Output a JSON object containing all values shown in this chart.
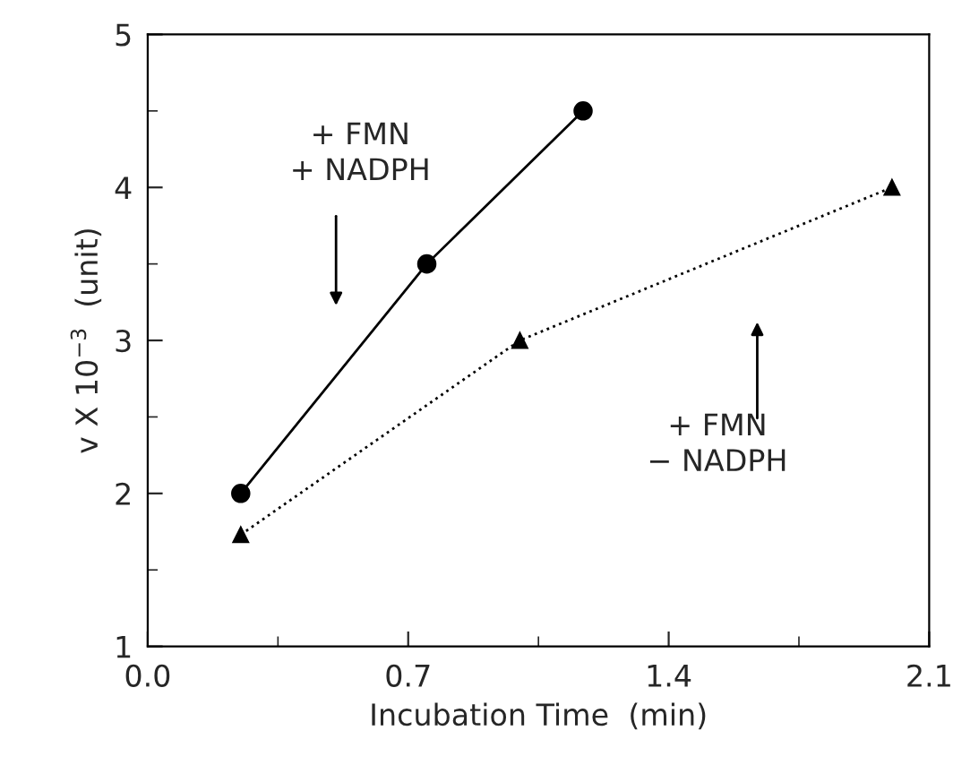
{
  "chart_data": {
    "type": "line",
    "xlabel": "Incubation Time  (min)",
    "ylabel": "v X 10$^{−3}$  (unit)",
    "xlim": [
      0.0,
      2.1
    ],
    "xticks": [
      {
        "value": 0,
        "label": "0.0"
      },
      0.7,
      1.4,
      2.1
    ],
    "ylim": [
      1,
      5
    ],
    "yticks": [
      1,
      2,
      3,
      4,
      5
    ],
    "grid": false,
    "legend": false,
    "series": [
      {
        "color": "#000000",
        "marker": "circle",
        "line_style": "solid",
        "x": [
          0.25,
          0.75,
          1.17
        ],
        "values": [
          2.0,
          3.5,
          4.5
        ]
      },
      {
        "color": "#000000",
        "marker": "triangle",
        "line_style": "dotted",
        "x": [
          0.25,
          1.0,
          2.0
        ],
        "values": [
          1.73,
          3.0,
          4.0
        ]
      }
    ],
    "annotations": [
      "+ FMN\n+ NADPH",
      "+ FMN\n− NADPH"
    ]
  }
}
